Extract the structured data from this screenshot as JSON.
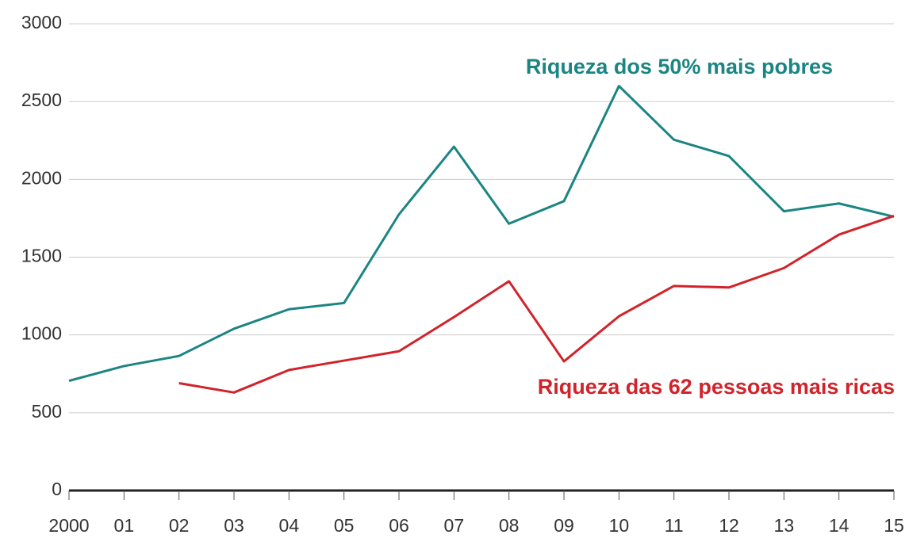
{
  "chart_data": {
    "type": "line",
    "categories": [
      "2000",
      "01",
      "02",
      "03",
      "04",
      "05",
      "06",
      "07",
      "08",
      "09",
      "10",
      "11",
      "12",
      "13",
      "14",
      "15"
    ],
    "series": [
      {
        "name": "Riqueza dos 50% mais pobres",
        "color": "#1a8582",
        "values": [
          705,
          800,
          865,
          1040,
          1165,
          1205,
          1775,
          2210,
          1715,
          1860,
          2600,
          2255,
          2150,
          1795,
          1845,
          1760
        ]
      },
      {
        "name": "Riqueza das 62 pessoas mais ricas",
        "color": "#d1232a",
        "values": [
          null,
          null,
          690,
          630,
          775,
          835,
          895,
          1115,
          1345,
          830,
          1120,
          1315,
          1305,
          1430,
          1645,
          1765
        ]
      }
    ],
    "ylim": [
      0,
      3000
    ],
    "yticks": [
      0,
      500,
      1000,
      1500,
      2000,
      2500,
      3000
    ],
    "grid": true
  }
}
